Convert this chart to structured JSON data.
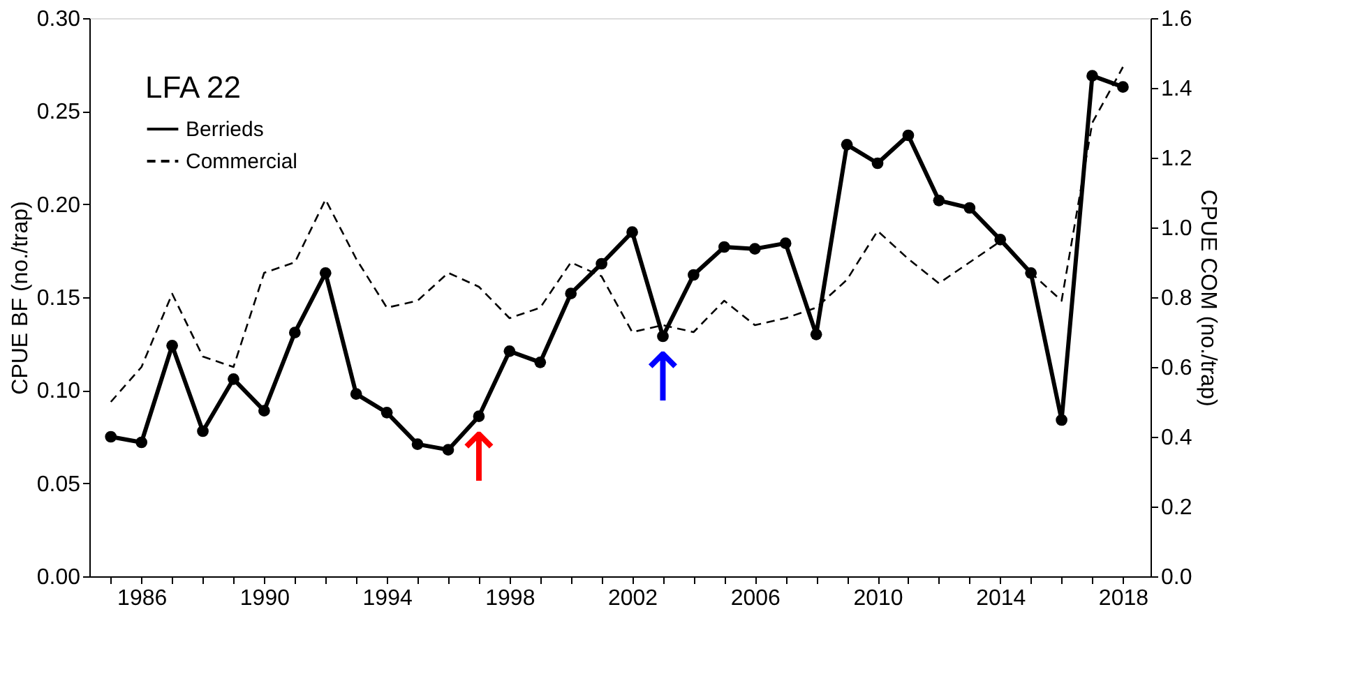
{
  "chart_data": {
    "type": "line",
    "ylabel": "CPUE BF (no./trap)",
    "y2label": "CPUE COM (no./trap)",
    "legend_title": "LFA 22",
    "legend": "top left",
    "grid": false,
    "x": [
      1985,
      1986,
      1987,
      1988,
      1989,
      1990,
      1991,
      1992,
      1993,
      1994,
      1995,
      1996,
      1997,
      1998,
      1999,
      2000,
      2001,
      2002,
      2003,
      2004,
      2005,
      2006,
      2007,
      2008,
      2009,
      2010,
      2011,
      2012,
      2013,
      2014,
      2015,
      2016,
      2017,
      2018
    ],
    "series": [
      {
        "name": "Berrieds",
        "color": "#000000",
        "marker": "circle",
        "line_style": "solid",
        "values": [
          0.075,
          0.072,
          0.124,
          0.078,
          0.106,
          0.089,
          0.131,
          0.163,
          0.098,
          0.088,
          0.071,
          0.068,
          0.086,
          0.121,
          0.115,
          0.152,
          0.168,
          0.185,
          0.129,
          0.162,
          0.177,
          0.176,
          0.179,
          0.13,
          0.232,
          0.222,
          0.237,
          0.202,
          0.198,
          0.181,
          0.163,
          0.084,
          0.269,
          0.263
        ]
      },
      {
        "name": "Commercial",
        "color": "#000000",
        "marker": "none",
        "line_style": "dashed",
        "axis": "y2",
        "values": [
          0.5,
          0.6,
          0.81,
          0.63,
          0.6,
          0.87,
          0.9,
          1.08,
          0.91,
          0.77,
          0.79,
          0.87,
          0.83,
          0.74,
          0.77,
          0.9,
          0.86,
          0.7,
          0.72,
          0.7,
          0.79,
          0.72,
          0.74,
          0.77,
          0.85,
          0.99,
          0.91,
          0.84,
          0.9,
          0.96,
          0.87,
          0.79,
          1.3,
          1.46
        ]
      }
    ],
    "xlim": [
      1984.3,
      2018.9
    ],
    "xticks": [
      {
        "value": 1985,
        "label": null
      },
      {
        "value": 1986,
        "label": "1986"
      },
      {
        "value": 1987,
        "label": null
      },
      {
        "value": 1988,
        "label": null
      },
      {
        "value": 1989,
        "label": null
      },
      {
        "value": 1990,
        "label": "1990"
      },
      {
        "value": 1991,
        "label": null
      },
      {
        "value": 1992,
        "label": null
      },
      {
        "value": 1993,
        "label": null
      },
      {
        "value": 1994,
        "label": "1994"
      },
      {
        "value": 1995,
        "label": null
      },
      {
        "value": 1996,
        "label": null
      },
      {
        "value": 1997,
        "label": null
      },
      {
        "value": 1998,
        "label": "1998"
      },
      {
        "value": 1999,
        "label": null
      },
      {
        "value": 2000,
        "label": null
      },
      {
        "value": 2001,
        "label": null
      },
      {
        "value": 2002,
        "label": "2002"
      },
      {
        "value": 2003,
        "label": null
      },
      {
        "value": 2004,
        "label": null
      },
      {
        "value": 2005,
        "label": null
      },
      {
        "value": 2006,
        "label": "2006"
      },
      {
        "value": 2007,
        "label": null
      },
      {
        "value": 2008,
        "label": null
      },
      {
        "value": 2009,
        "label": null
      },
      {
        "value": 2010,
        "label": "2010"
      },
      {
        "value": 2011,
        "label": null
      },
      {
        "value": 2012,
        "label": null
      },
      {
        "value": 2013,
        "label": null
      },
      {
        "value": 2014,
        "label": "2014"
      },
      {
        "value": 2015,
        "label": null
      },
      {
        "value": 2016,
        "label": null
      },
      {
        "value": 2017,
        "label": null
      },
      {
        "value": 2018,
        "label": "2018"
      }
    ],
    "ylim": [
      0,
      0.3
    ],
    "yticks": [
      {
        "value": 0,
        "label": "0.00"
      },
      {
        "value": 0.05,
        "label": "0.05"
      },
      {
        "value": 0.1,
        "label": "0.10"
      },
      {
        "value": 0.15,
        "label": "0.15"
      },
      {
        "value": 0.2,
        "label": "0.20"
      },
      {
        "value": 0.25,
        "label": "0.25"
      },
      {
        "value": 0.3,
        "label": "0.30"
      }
    ],
    "y2lim": [
      0,
      1.6
    ],
    "y2ticks": [
      {
        "value": 0,
        "label": "0.0"
      },
      {
        "value": 0.2,
        "label": "0.2"
      },
      {
        "value": 0.4,
        "label": "0.4"
      },
      {
        "value": 0.6,
        "label": "0.6"
      },
      {
        "value": 0.8,
        "label": "0.8"
      },
      {
        "value": 1.0,
        "label": "1.0"
      },
      {
        "value": 1.2,
        "label": "1.2"
      },
      {
        "value": 1.4,
        "label": "1.4"
      },
      {
        "value": 1.6,
        "label": "1.6"
      }
    ],
    "annotations": [
      {
        "text": "↑",
        "x": 1997,
        "y": 0.086
      },
      {
        "text": "↑",
        "x": 2003,
        "y": 0.129
      }
    ]
  }
}
